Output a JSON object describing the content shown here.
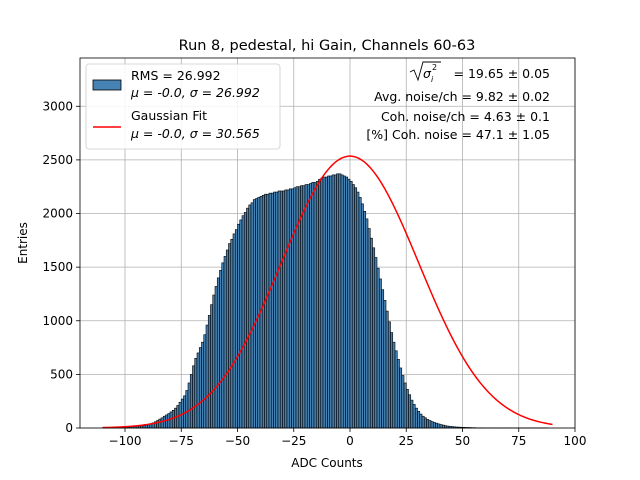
{
  "chart_data": {
    "type": "bar",
    "title": "Run 8, pedestal, hi Gain, Channels 60-63",
    "xlabel": "ADC Counts",
    "ylabel": "Entries",
    "xlim": [
      -120,
      100
    ],
    "ylim": [
      0,
      3450
    ],
    "grid": true,
    "legend_position": "top-left",
    "xticks": [
      -100,
      -75,
      -50,
      -25,
      0,
      25,
      50,
      75,
      100
    ],
    "xtick_labels": [
      "−100",
      "−75",
      "−50",
      "−25",
      "0",
      "25",
      "50",
      "75",
      "100"
    ],
    "yticks": [
      0,
      500,
      1000,
      1500,
      2000,
      2500,
      3000
    ],
    "ytick_labels": [
      "0",
      "500",
      "1000",
      "1500",
      "2000",
      "2500",
      "3000"
    ],
    "histogram": {
      "name": "RMS = 26.992",
      "label2": "μ = -0.0, σ = 26.992",
      "color": "#4682b4",
      "edgecolor": "#000000",
      "bin_start": -110,
      "bin_width": 1,
      "values": [
        2,
        2,
        3,
        3,
        4,
        4,
        5,
        6,
        7,
        8,
        9,
        10,
        11,
        13,
        15,
        17,
        19,
        20,
        22,
        27,
        33,
        40,
        48,
        58,
        70,
        83,
        95,
        110,
        122,
        135,
        150,
        165,
        185,
        210,
        240,
        270,
        300,
        350,
        420,
        500,
        580,
        650,
        700,
        750,
        800,
        870,
        960,
        1050,
        1150,
        1240,
        1320,
        1400,
        1470,
        1540,
        1600,
        1660,
        1720,
        1760,
        1810,
        1850,
        1900,
        1940,
        1980,
        2010,
        2050,
        2080,
        2100,
        2130,
        2140,
        2150,
        2160,
        2170,
        2180,
        2180,
        2190,
        2190,
        2200,
        2200,
        2210,
        2210,
        2210,
        2220,
        2220,
        2230,
        2230,
        2240,
        2250,
        2250,
        2260,
        2260,
        2270,
        2270,
        2280,
        2290,
        2290,
        2300,
        2320,
        2330,
        2340,
        2340,
        2350,
        2350,
        2360,
        2360,
        2370,
        2370,
        2360,
        2350,
        2340,
        2320,
        2300,
        2270,
        2240,
        2200,
        2150,
        2090,
        2020,
        1950,
        1860,
        1770,
        1680,
        1590,
        1490,
        1390,
        1290,
        1190,
        1090,
        990,
        890,
        800,
        720,
        640,
        560,
        490,
        420,
        360,
        310,
        260,
        220,
        185,
        155,
        130,
        110,
        95,
        80,
        70,
        60,
        52,
        45,
        38,
        32,
        27,
        22,
        18,
        15,
        13,
        11,
        9,
        8,
        7,
        6,
        5,
        5,
        4,
        3,
        3,
        2,
        2,
        2,
        2,
        1,
        1,
        1,
        1,
        1,
        1,
        1,
        1,
        1,
        1,
        1,
        1,
        1,
        1,
        1,
        1,
        1,
        1,
        1,
        1,
        1,
        1,
        1,
        1,
        1,
        1,
        1,
        1
      ]
    },
    "fit": {
      "name": "Gaussian Fit",
      "label2": "μ = -0.0, σ = 30.565",
      "color": "#ff0000",
      "mu": 0.0,
      "sigma": 30.565,
      "amplitude": 2535,
      "x_range": [
        -110,
        90
      ]
    },
    "annotations": [
      {
        "prefix": "",
        "sigma_label": "σ",
        "sub_label": "i",
        "sup_label": "2",
        "suffix": " = 19.65 ± 0.05"
      },
      {
        "text": "Avg. noise/ch = 9.82 ± 0.02"
      },
      {
        "text": "Coh. noise/ch = 4.63 ± 0.1"
      },
      {
        "text": "[%] Coh. noise = 47.1 ± 1.05"
      }
    ]
  }
}
